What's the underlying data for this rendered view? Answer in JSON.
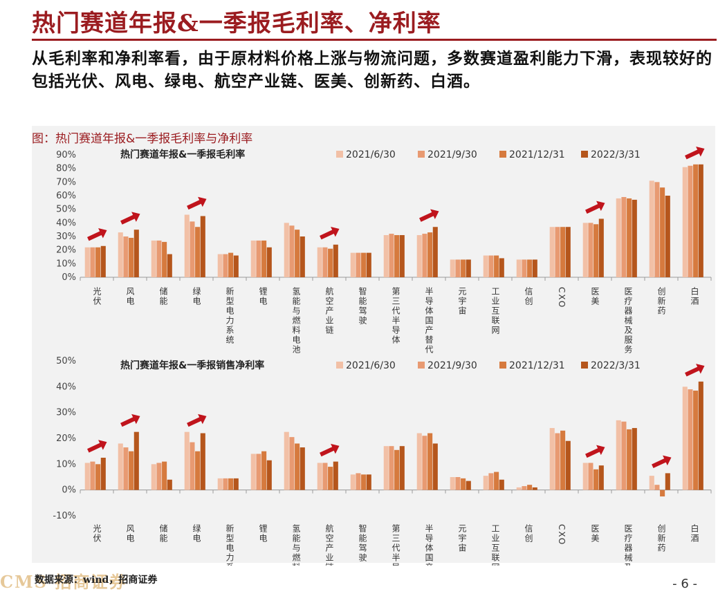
{
  "header": {
    "title": "热门赛道年报&一季报毛利率、净利率"
  },
  "summary": "从毛利率和净利率看，由于原材料价格上涨与物流问题，多数赛道盈利能力下滑，表现较好的包括光伏、风电、绿电、航空产业链、医美、创新药、白酒。",
  "figure_label": "图：热门赛道年报&一季报毛利率与净利率",
  "source": "数据来源：wind，招商证券",
  "logo": "CMS 招商证券",
  "page": "- 6 -",
  "colors": {
    "accent": "#9b1c20",
    "s1": "#f2c0a6",
    "s2": "#e89a72",
    "s3": "#d67a3e",
    "s4": "#b5561c",
    "arrow": "#c0141c"
  },
  "chart_data": [
    {
      "type": "bar",
      "title": "热门赛道年报&一季报毛利率",
      "categories": [
        "光伏",
        "风电",
        "储能",
        "绿电",
        "新型电力系统",
        "锂电",
        "氢能与燃料电池",
        "航空产业链",
        "智能驾驶",
        "第三代半导体",
        "半导体国产替代",
        "元宇宙",
        "工业互联网",
        "信创",
        "CXO",
        "医美",
        "医疗器械及服务",
        "创新药",
        "白酒"
      ],
      "series": [
        {
          "name": "2021/6/30",
          "values": [
            22,
            33,
            27,
            46,
            17,
            27,
            40,
            22,
            18,
            31,
            31,
            13,
            16,
            13,
            37,
            40,
            58,
            71,
            81
          ]
        },
        {
          "name": "2021/9/30",
          "values": [
            22,
            30,
            27,
            41,
            17,
            27,
            38,
            22,
            18,
            32,
            32,
            13,
            16,
            13,
            37,
            40,
            59,
            70,
            82
          ]
        },
        {
          "name": "2021/12/31",
          "values": [
            22,
            29,
            26,
            37,
            18,
            27,
            35,
            21,
            18,
            31,
            33,
            13,
            16,
            13,
            37,
            39,
            58,
            66,
            83
          ]
        },
        {
          "name": "2022/3/31",
          "values": [
            23,
            35,
            17,
            45,
            16,
            22,
            30,
            24,
            18,
            31,
            37,
            13,
            14,
            13,
            37,
            43,
            57,
            60,
            83
          ]
        }
      ],
      "ylim": [
        0,
        90
      ],
      "yticks": [
        "0%",
        "10%",
        "20%",
        "30%",
        "40%",
        "50%",
        "60%",
        "70%",
        "80%",
        "90%"
      ],
      "legend": "top",
      "arrow_marks": [
        "光伏",
        "风电",
        "绿电",
        "航空产业链",
        "半导体国产替代",
        "医美",
        "白酒"
      ]
    },
    {
      "type": "bar",
      "title": "热门赛道年报&一季报销售净利率",
      "categories": [
        "光伏",
        "风电",
        "储能",
        "绿电",
        "新型电力系统",
        "锂电",
        "氢能与燃料电池",
        "航空产业链",
        "智能驾驶",
        "第三代半导体",
        "半导体国产替代",
        "元宇宙",
        "工业互联网",
        "信创",
        "CXO",
        "医美",
        "医疗器械及服务",
        "创新药",
        "白酒"
      ],
      "series": [
        {
          "name": "2021/6/30",
          "values": [
            10.5,
            18,
            10,
            22.5,
            4.5,
            14,
            22.5,
            10.5,
            6,
            17,
            22,
            5,
            5.5,
            1,
            24,
            10.5,
            27,
            5.5,
            40
          ]
        },
        {
          "name": "2021/9/30",
          "values": [
            11,
            16.5,
            10.5,
            18.5,
            4.5,
            14,
            20.5,
            10.5,
            6.5,
            17,
            21,
            5,
            6.5,
            1.5,
            22,
            10.5,
            26.5,
            2,
            39
          ]
        },
        {
          "name": "2021/12/31",
          "values": [
            10,
            15,
            11,
            15,
            4.5,
            15,
            18,
            9,
            6,
            15.5,
            22,
            4.5,
            7,
            2,
            23,
            8,
            23.5,
            -2.5,
            38.5
          ]
        },
        {
          "name": "2022/3/31",
          "values": [
            12.5,
            22.5,
            4,
            22,
            4.5,
            11.5,
            16.5,
            11,
            6,
            17,
            18,
            3.5,
            4,
            1,
            19,
            9.5,
            24,
            6.5,
            42
          ]
        }
      ],
      "ylim": [
        -10,
        50
      ],
      "yticks": [
        "-10%",
        "0%",
        "10%",
        "20%",
        "30%",
        "40%",
        "50%"
      ],
      "legend": "top",
      "arrow_marks": [
        "光伏",
        "风电",
        "绿电",
        "航空产业链",
        "医美",
        "创新药",
        "白酒"
      ]
    }
  ]
}
